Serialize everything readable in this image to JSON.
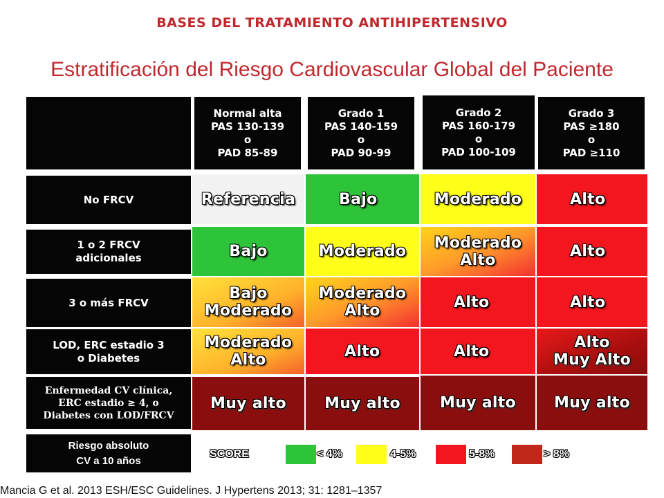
{
  "top_title": "BASES DEL TRATAMIENTO ANTIHIPERTENSIVO",
  "main_title": "Estratificación del Riesgo Cardiovascular Global del Paciente",
  "columns": [
    {
      "line1": "Normal alta",
      "line2": "PAS 130-139",
      "line3": "o",
      "line4": "PAD 85-89"
    },
    {
      "line1": "Grado 1",
      "line2": "PAS 140-159",
      "line3": "o",
      "line4": "PAD 90-99"
    },
    {
      "line1": "Grado 2",
      "line2": "PAS 160-179",
      "line3": "o",
      "line4": "PAD 100-109"
    },
    {
      "line1": "Grado 3",
      "line2": "PAS ≥180",
      "line3": "o",
      "line4": "PAD ≥110"
    }
  ],
  "rows": [
    {
      "label1": "No FRCV",
      "label2": ""
    },
    {
      "label1": "1 o 2 FRCV",
      "label2": "adicionales"
    },
    {
      "label1": "3 o más FRCV",
      "label2": ""
    },
    {
      "label1": "LOD, ERC estadio 3",
      "label2": "o Diabetes"
    },
    {
      "label1": "Enfermedad CV clínica,",
      "label2": "ERC estadio ≥ 4, o",
      "label3": "Diabetes con LOD/FRCV"
    }
  ],
  "cells": [
    [
      {
        "a": "Referencia",
        "b": ""
      },
      {
        "a": "Bajo",
        "b": ""
      },
      {
        "a": "Moderado",
        "b": ""
      },
      {
        "a": "Alto",
        "b": ""
      }
    ],
    [
      {
        "a": "Bajo",
        "b": ""
      },
      {
        "a": "Moderado",
        "b": ""
      },
      {
        "a": "Moderado",
        "b": "Alto"
      },
      {
        "a": "Alto",
        "b": ""
      }
    ],
    [
      {
        "a": "Bajo",
        "b": "Moderado"
      },
      {
        "a": "Moderado",
        "b": "Alto"
      },
      {
        "a": "Alto",
        "b": ""
      },
      {
        "a": "Alto",
        "b": ""
      }
    ],
    [
      {
        "a": "Moderado",
        "b": "Alto"
      },
      {
        "a": "Alto",
        "b": ""
      },
      {
        "a": "Alto",
        "b": ""
      },
      {
        "a": "Alto",
        "b": "Muy Alto"
      }
    ],
    [
      {
        "a": "Muy alto",
        "b": ""
      },
      {
        "a": "Muy alto",
        "b": ""
      },
      {
        "a": "Muy alto",
        "b": ""
      },
      {
        "a": "Muy alto",
        "b": ""
      }
    ]
  ],
  "legend": {
    "box_line1": "Riesgo absoluto",
    "box_line2": "CV a 10 años",
    "score": "SCORE",
    "items": [
      "< 4%",
      "4-5%",
      "5-8%",
      "> 8%"
    ],
    "colors": [
      "#2ec43a",
      "#ffff1a",
      "#f4161e",
      "#c0281a"
    ]
  },
  "citation": "Mancia G et al. 2013 ESH/ESC Guidelines. J Hypertens 2013; 31: 1281–1357"
}
